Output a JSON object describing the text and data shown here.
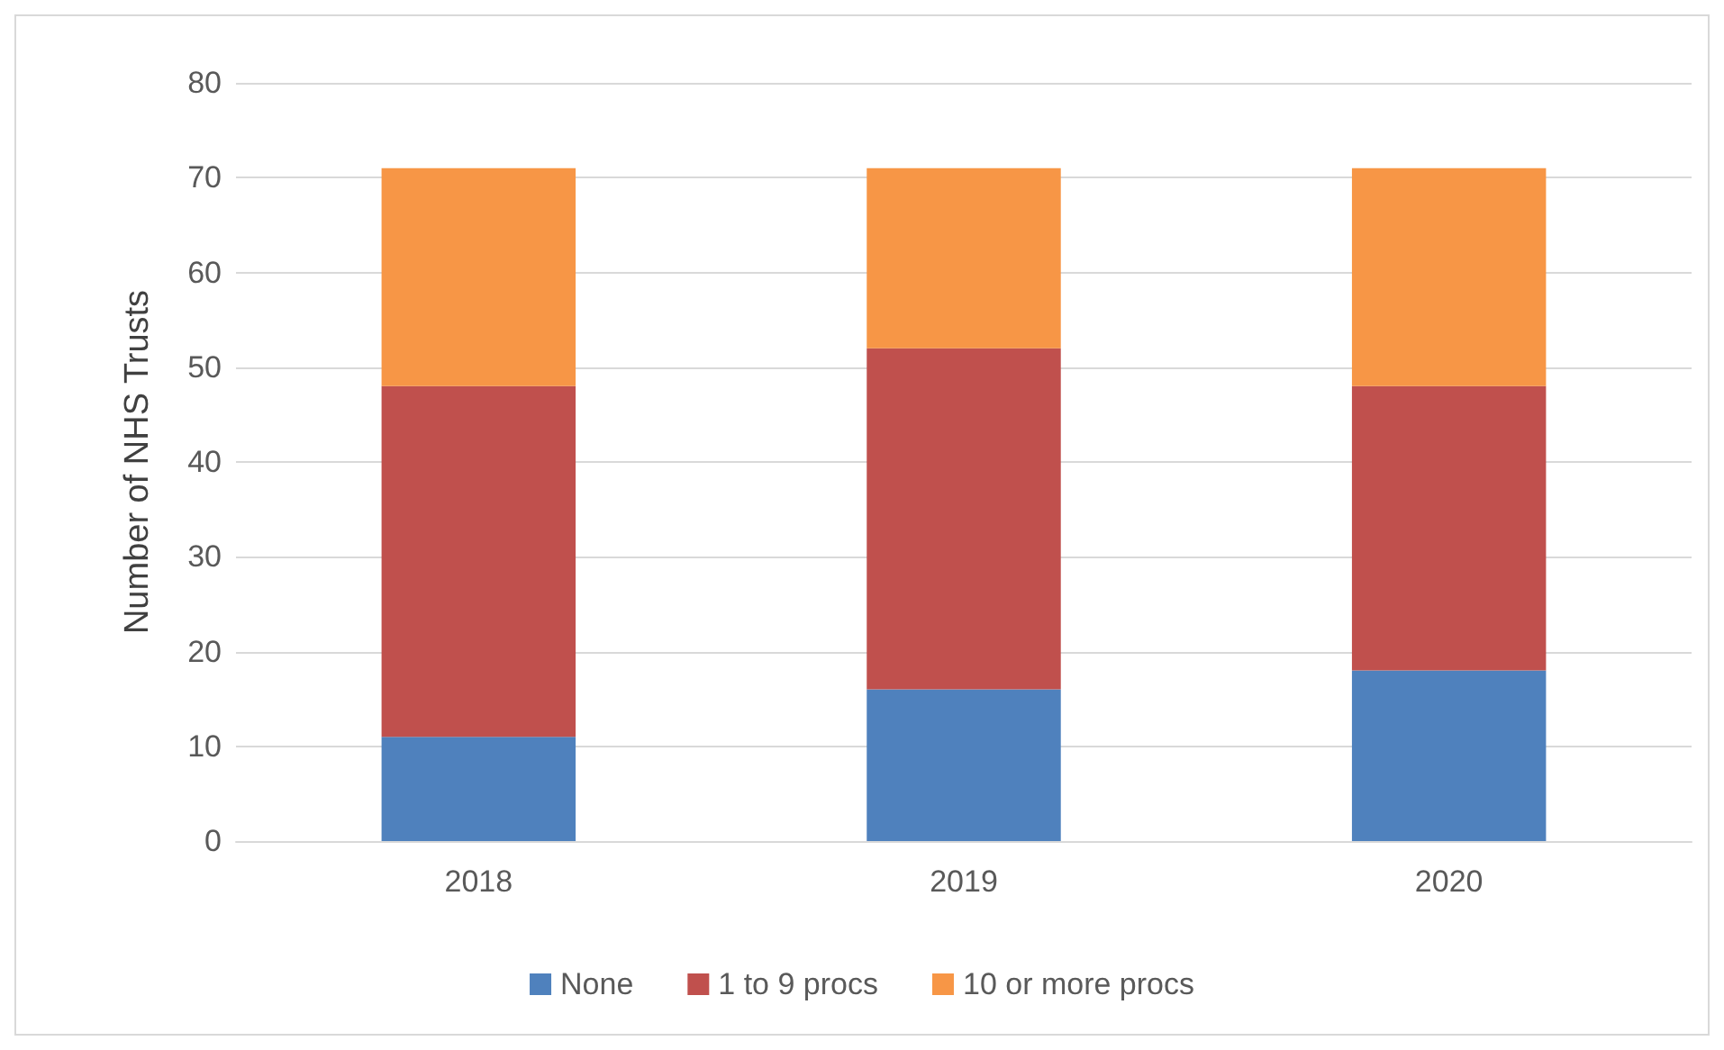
{
  "chart_data": {
    "type": "bar",
    "stacked": true,
    "ylabel": "Number of NHS Trusts",
    "categories": [
      "2018",
      "2019",
      "2020"
    ],
    "series": [
      {
        "name": "None",
        "color": "#4f81bd",
        "values": [
          11,
          16,
          18
        ]
      },
      {
        "name": "1 to 9 procs",
        "color": "#c0504d",
        "values": [
          37,
          36,
          30
        ]
      },
      {
        "name": "10 or more procs",
        "color": "#f79646",
        "values": [
          23,
          19,
          23
        ]
      }
    ],
    "ylim": [
      0,
      80
    ],
    "yticks": [
      0,
      10,
      20,
      30,
      40,
      50,
      60,
      70,
      80
    ],
    "grid": "y",
    "legend": "bottom"
  }
}
